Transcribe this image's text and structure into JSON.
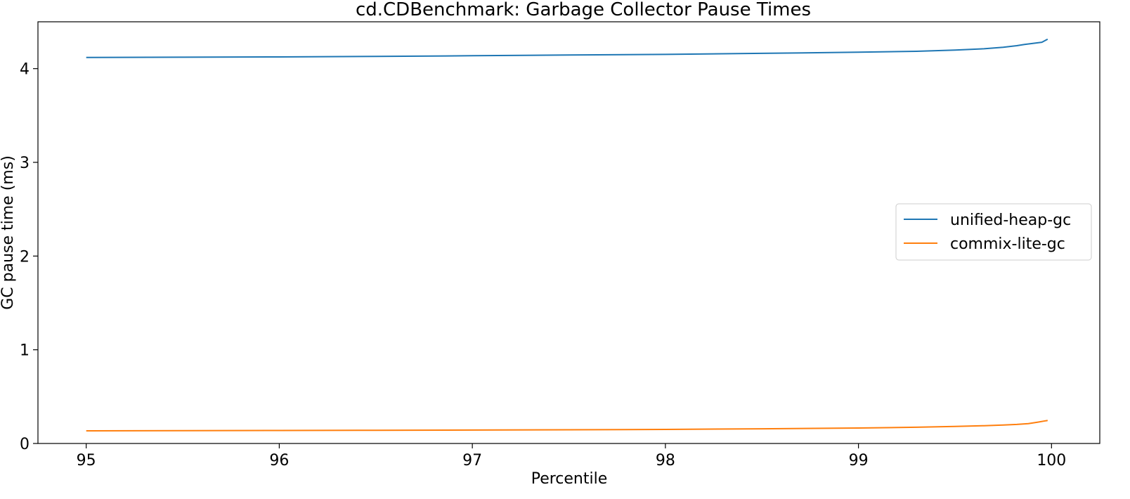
{
  "chart_data": {
    "type": "line",
    "title": "cd.CDBenchmark: Garbage Collector Pause Times",
    "xlabel": "Percentile",
    "ylabel": "GC pause time (ms)",
    "xlim": [
      94.75,
      100.25
    ],
    "ylim": [
      0,
      4.5
    ],
    "xticks": [
      95,
      96,
      97,
      98,
      99,
      100
    ],
    "yticks": [
      0,
      1,
      2,
      3,
      4
    ],
    "grid": false,
    "legend_position": "center-right",
    "series": [
      {
        "name": "unified-heap-gc",
        "color": "#1f77b4",
        "x": [
          95.0,
          95.5,
          96.0,
          96.5,
          97.0,
          97.5,
          98.0,
          98.5,
          99.0,
          99.3,
          99.5,
          99.65,
          99.75,
          99.82,
          99.86,
          99.9,
          99.95,
          99.98
        ],
        "y": [
          4.12,
          4.122,
          4.125,
          4.13,
          4.138,
          4.145,
          4.152,
          4.163,
          4.175,
          4.185,
          4.198,
          4.212,
          4.228,
          4.245,
          4.258,
          4.268,
          4.282,
          4.315
        ]
      },
      {
        "name": "commix-lite-gc",
        "color": "#ff7f0e",
        "x": [
          95.0,
          95.5,
          96.0,
          96.5,
          97.0,
          97.5,
          98.0,
          98.5,
          99.0,
          99.3,
          99.5,
          99.65,
          99.75,
          99.82,
          99.88,
          99.93,
          99.97,
          99.98
        ],
        "y": [
          0.135,
          0.137,
          0.139,
          0.141,
          0.143,
          0.146,
          0.15,
          0.157,
          0.165,
          0.173,
          0.182,
          0.19,
          0.197,
          0.203,
          0.212,
          0.228,
          0.242,
          0.245
        ]
      }
    ]
  }
}
